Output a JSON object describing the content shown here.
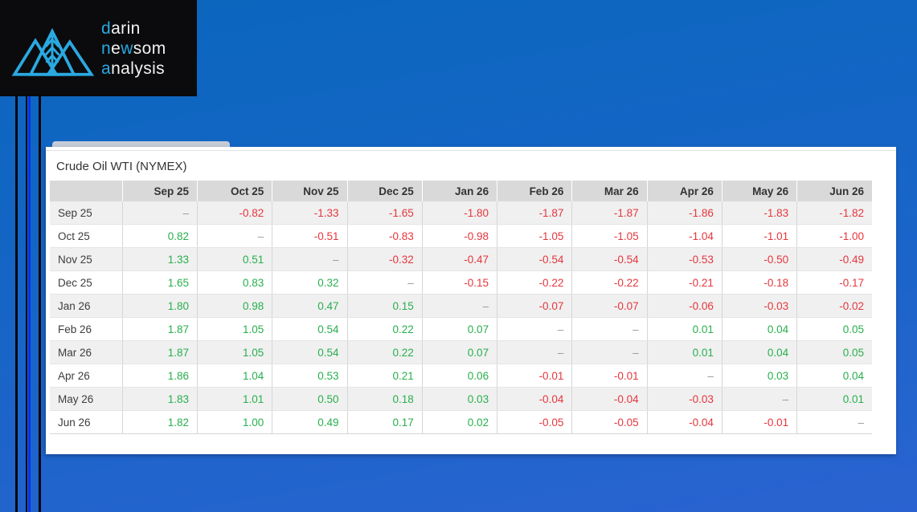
{
  "logo": {
    "accent_color": "#29a9e2",
    "background": "#0b0b0d",
    "line1": {
      "accent1": "d",
      "rest1": "arin"
    },
    "line2": {
      "accent1": "n",
      "rest1": "e",
      "accent2": "w",
      "rest2": "som"
    },
    "line3": {
      "accent1": "a",
      "rest1": "nalysis"
    }
  },
  "panel": {
    "title": "Crude Oil WTI (NYMEX)"
  },
  "matrix": {
    "columns": [
      "Sep 25",
      "Oct 25",
      "Nov 25",
      "Dec 25",
      "Jan 26",
      "Feb 26",
      "Mar 26",
      "Apr 26",
      "May 26",
      "Jun 26"
    ],
    "rows": [
      {
        "label": "Sep 25",
        "values": [
          "–",
          "-0.82",
          "-1.33",
          "-1.65",
          "-1.80",
          "-1.87",
          "-1.87",
          "-1.86",
          "-1.83",
          "-1.82"
        ]
      },
      {
        "label": "Oct 25",
        "values": [
          "0.82",
          "–",
          "-0.51",
          "-0.83",
          "-0.98",
          "-1.05",
          "-1.05",
          "-1.04",
          "-1.01",
          "-1.00"
        ]
      },
      {
        "label": "Nov 25",
        "values": [
          "1.33",
          "0.51",
          "–",
          "-0.32",
          "-0.47",
          "-0.54",
          "-0.54",
          "-0.53",
          "-0.50",
          "-0.49"
        ]
      },
      {
        "label": "Dec 25",
        "values": [
          "1.65",
          "0.83",
          "0.32",
          "–",
          "-0.15",
          "-0.22",
          "-0.22",
          "-0.21",
          "-0.18",
          "-0.17"
        ]
      },
      {
        "label": "Jan 26",
        "values": [
          "1.80",
          "0.98",
          "0.47",
          "0.15",
          "–",
          "-0.07",
          "-0.07",
          "-0.06",
          "-0.03",
          "-0.02"
        ]
      },
      {
        "label": "Feb 26",
        "values": [
          "1.87",
          "1.05",
          "0.54",
          "0.22",
          "0.07",
          "–",
          "–",
          "0.01",
          "0.04",
          "0.05"
        ]
      },
      {
        "label": "Mar 26",
        "values": [
          "1.87",
          "1.05",
          "0.54",
          "0.22",
          "0.07",
          "–",
          "–",
          "0.01",
          "0.04",
          "0.05"
        ]
      },
      {
        "label": "Apr 26",
        "values": [
          "1.86",
          "1.04",
          "0.53",
          "0.21",
          "0.06",
          "-0.01",
          "-0.01",
          "–",
          "0.03",
          "0.04"
        ]
      },
      {
        "label": "May 26",
        "values": [
          "1.83",
          "1.01",
          "0.50",
          "0.18",
          "0.03",
          "-0.04",
          "-0.04",
          "-0.03",
          "–",
          "0.01"
        ]
      },
      {
        "label": "Jun 26",
        "values": [
          "1.82",
          "1.00",
          "0.49",
          "0.17",
          "0.02",
          "-0.05",
          "-0.05",
          "-0.04",
          "-0.01",
          "–"
        ]
      }
    ],
    "colors": {
      "positive": "#28af4d",
      "negative": "#e5363d",
      "dash": "#999999",
      "header_bg": "#d9d9d9",
      "stripe_bg": "#f0f0f0"
    }
  }
}
